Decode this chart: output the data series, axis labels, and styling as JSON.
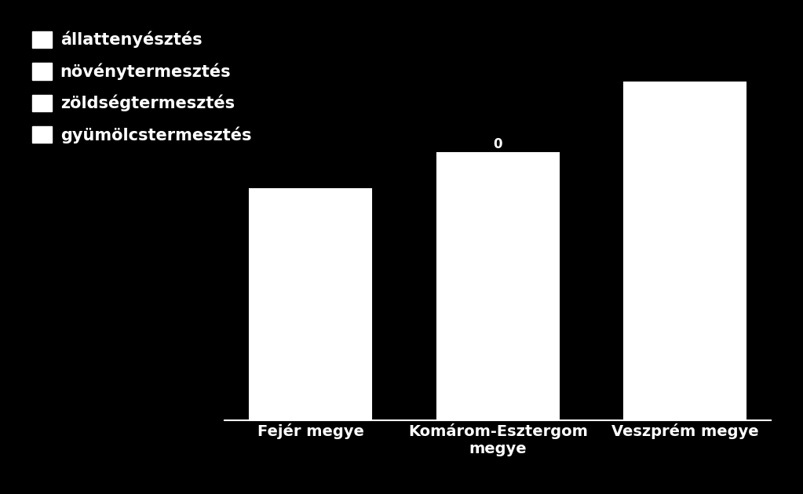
{
  "categories": [
    "Fejér megye",
    "Komárom-Esztergom\nmegye",
    "Veszprém megye"
  ],
  "values": [
    6.5,
    7.5,
    9.5
  ],
  "bar_color": "#ffffff",
  "bar_edgecolor": "#ffffff",
  "background_color": "#000000",
  "text_color": "#ffffff",
  "legend_labels": [
    "állattenyésztés",
    "növénytermesztés",
    "zöldségtermesztés",
    "gyümölcstermesztés"
  ],
  "legend_marker_color": "#ffffff",
  "bar_annotation": "0",
  "bar_annotation_index": 1,
  "ylim": [
    0,
    10
  ],
  "ylabel": "",
  "xlabel": "",
  "tick_label_fontsize": 14,
  "legend_fontsize": 15,
  "annotation_fontsize": 12,
  "bar_width": 0.65
}
